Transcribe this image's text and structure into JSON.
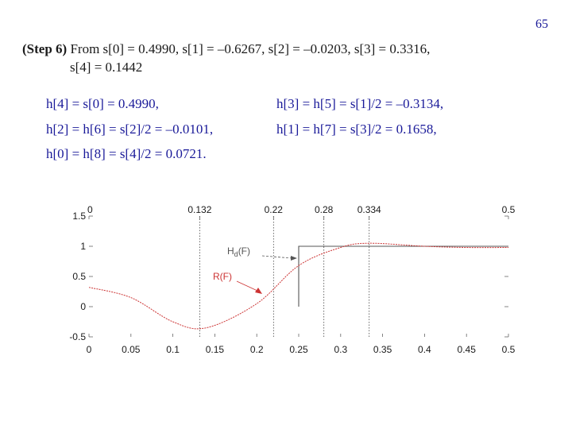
{
  "page_number": "65",
  "step": {
    "label": "(Step 6)",
    "line1": " From s[0] = 0.4990, s[1] = –0.6267, s[2] = –0.0203, s[3] = 0.3316,",
    "line2": "s[4] = 0.1442"
  },
  "equations": [
    "h[4] = s[0] = 0.4990,",
    "h[3] = h[5] = s[1]/2 = –0.3134,",
    "h[2] = h[6] = s[2]/2 = –0.0101,",
    "h[1] = h[7] = s[3]/2 = 0.1658,",
    "h[0] = h[8] = s[4]/2 = 0.0721."
  ],
  "chart_data": {
    "type": "line",
    "x_ticks": [
      "0",
      "0.05",
      "0.1",
      "0.15",
      "0.2",
      "0.25",
      "0.3",
      "0.35",
      "0.4",
      "0.45",
      "0.5"
    ],
    "y_ticks": [
      "1.5",
      "1",
      "0.5",
      "0",
      "-0.5"
    ],
    "top_ticks": [
      "0",
      "0.132",
      "0.22",
      "0.28",
      "0.334",
      "0.5"
    ],
    "top_tick_values": [
      0,
      0.132,
      0.22,
      0.28,
      0.334,
      0.5
    ],
    "vlines": [
      0.132,
      0.22,
      0.28,
      0.334
    ],
    "xlim": [
      0,
      0.5
    ],
    "ylim": [
      -0.5,
      1.5
    ],
    "series": [
      {
        "name": "Hd(F)",
        "type": "step",
        "color": "#555555",
        "x": [
          0.25,
          0.25,
          0.5
        ],
        "y": [
          0,
          1,
          1
        ]
      },
      {
        "name": "R(F)",
        "color": "#cc3333",
        "x": [
          0,
          0.05,
          0.1,
          0.14,
          0.2,
          0.25,
          0.3,
          0.334,
          0.4,
          0.45,
          0.5
        ],
        "y": [
          0.32,
          0.15,
          -0.25,
          -0.35,
          0.05,
          0.68,
          0.98,
          1.05,
          1.0,
          0.98,
          0.98
        ]
      }
    ],
    "annotations": [
      {
        "text": "Hd(F)",
        "color": "#555555"
      },
      {
        "text": "R(F)",
        "color": "#cc3333"
      }
    ]
  }
}
